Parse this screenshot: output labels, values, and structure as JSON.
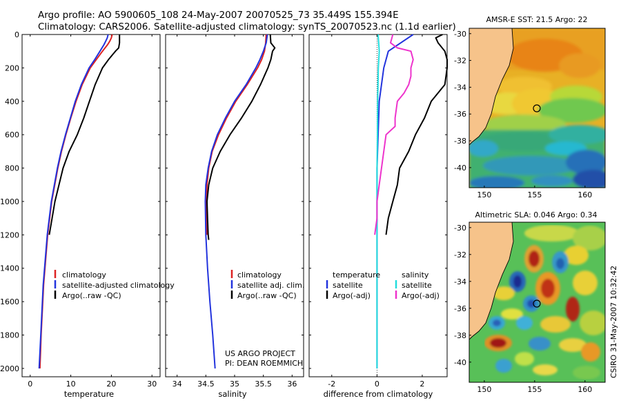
{
  "header": {
    "line1": "Argo profile: AO 5900605_108 24-May-2007 20070525_73 35.449S 155.394E",
    "line2": "Climatology: CARS2006. Satellite-adjusted climatology: synTS_20070523.nc (1.1d earlier)"
  },
  "credit": "CSIRO 31-May-2007 10:32:42",
  "colors": {
    "climatology": "#dd2222",
    "satellite_adjusted": "#2233dd",
    "argo": "#000000",
    "salinity_satellite": "#22dddd",
    "salinity_argo": "#ee33cc",
    "land": "#f6c38a"
  },
  "chart_data": [
    {
      "type": "line",
      "title": "",
      "xlabel": "temperature",
      "ylabel": "",
      "xlim": [
        -2,
        32
      ],
      "ylim": [
        0,
        2050
      ],
      "xticks": [
        "0",
        "10",
        "20",
        "30"
      ],
      "yticks": [
        "0",
        "200",
        "400",
        "600",
        "800",
        "1000",
        "1200",
        "1400",
        "1600",
        "1800",
        "2000"
      ],
      "legend": [
        "climatology",
        "satellite-adjusted climatology",
        "Argo(..raw -QC)"
      ],
      "series": [
        {
          "name": "climatology",
          "depth": [
            0,
            20,
            40,
            60,
            100,
            150,
            200,
            300,
            400,
            500,
            600,
            700,
            800,
            1000,
            1200,
            1500,
            1800,
            2000
          ],
          "values": [
            20.2,
            20.0,
            19.6,
            19.1,
            17.8,
            16.3,
            14.8,
            12.8,
            11.3,
            10.0,
            8.8,
            7.7,
            6.8,
            5.3,
            4.3,
            3.3,
            2.7,
            2.4
          ]
        },
        {
          "name": "satellite-adjusted climatology",
          "depth": [
            0,
            20,
            40,
            60,
            100,
            150,
            200,
            300,
            400,
            500,
            600,
            700,
            800,
            1000,
            1200,
            1500,
            1800,
            2000
          ],
          "values": [
            19.2,
            19.0,
            18.6,
            18.2,
            17.2,
            15.9,
            14.5,
            12.6,
            11.1,
            9.9,
            8.7,
            7.6,
            6.7,
            5.2,
            4.2,
            3.2,
            2.6,
            2.2
          ]
        },
        {
          "name": "Argo(..raw -QC)",
          "depth": [
            0,
            20,
            50,
            80,
            100,
            150,
            200,
            300,
            400,
            500,
            600,
            700,
            800,
            1000,
            1200
          ],
          "values": [
            22.0,
            22.0,
            22.0,
            21.8,
            21.0,
            19.3,
            17.8,
            16.0,
            14.6,
            13.2,
            11.6,
            9.6,
            8.1,
            6.1,
            4.7
          ]
        }
      ]
    },
    {
      "type": "line",
      "title": "",
      "xlabel": "salinity",
      "ylabel": "",
      "xlim": [
        33.8,
        36.2
      ],
      "ylim": [
        0,
        2050
      ],
      "xticks": [
        "34",
        "34.5",
        "35",
        "35.5",
        "36"
      ],
      "legend": [
        "climatology",
        "satellite adj. clim.",
        "Argo(..raw -QC)"
      ],
      "annotation": [
        "US ARGO PROJECT",
        "PI: DEAN ROEMMICH"
      ],
      "series": [
        {
          "name": "climatology",
          "depth": [
            0,
            50,
            100,
            150,
            200,
            300,
            400,
            500,
            600,
            700,
            800,
            900,
            1000,
            1100,
            1200
          ],
          "values": [
            35.55,
            35.54,
            35.52,
            35.47,
            35.4,
            35.22,
            35.02,
            34.86,
            34.72,
            34.61,
            34.55,
            34.52,
            34.51,
            34.51,
            34.52
          ]
        },
        {
          "name": "satellite adj. clim.",
          "depth": [
            0,
            50,
            100,
            150,
            200,
            300,
            400,
            500,
            600,
            700,
            800,
            900,
            1000,
            1200,
            1400,
            1600,
            1800,
            2000
          ],
          "values": [
            35.57,
            35.55,
            35.5,
            35.44,
            35.37,
            35.2,
            35.0,
            34.84,
            34.7,
            34.6,
            34.54,
            34.5,
            34.49,
            34.5,
            34.53,
            34.57,
            34.62,
            34.66
          ]
        },
        {
          "name": "Argo(..raw -QC)",
          "depth": [
            0,
            50,
            80,
            100,
            150,
            200,
            300,
            400,
            500,
            600,
            700,
            800,
            900,
            1000,
            1100,
            1200,
            1230
          ],
          "values": [
            35.62,
            35.63,
            35.7,
            35.66,
            35.63,
            35.58,
            35.45,
            35.3,
            35.12,
            34.92,
            34.75,
            34.62,
            34.55,
            34.52,
            34.53,
            34.54,
            34.55
          ]
        }
      ]
    },
    {
      "type": "line",
      "title": "",
      "xlabel": "difference from climatology",
      "ylabel": "",
      "xlim": [
        -3,
        3.1
      ],
      "ylim": [
        0,
        2050
      ],
      "xticks": [
        "-2",
        "0",
        "2"
      ],
      "legend": [
        "temperature",
        "satellite",
        "Argo(-adj)",
        "salinity",
        "satellite",
        "Argo(-adj)"
      ],
      "series": [
        {
          "name": "temperature satellite",
          "depth": [
            0,
            100,
            200,
            400,
            600,
            800,
            1000,
            1200,
            1500,
            1800,
            2000
          ],
          "values": [
            1.6,
            0.5,
            0.3,
            0.1,
            0.05,
            0.0,
            0.0,
            0.0,
            0.0,
            0.0,
            0.0
          ]
        },
        {
          "name": "temperature Argo(-adj)",
          "depth": [
            0,
            20,
            50,
            100,
            150,
            200,
            300,
            400,
            500,
            600,
            700,
            800,
            900,
            1000,
            1100,
            1200
          ],
          "values": [
            2.9,
            2.6,
            2.7,
            3.0,
            3.1,
            3.1,
            3.0,
            2.4,
            2.1,
            1.7,
            1.4,
            1.0,
            0.9,
            0.7,
            0.5,
            0.4
          ]
        },
        {
          "name": "salinity satellite",
          "depth": [
            0,
            100,
            200,
            400,
            600,
            800,
            1000,
            1500,
            2000
          ],
          "values": [
            0.05,
            0.1,
            0.06,
            0.03,
            0.02,
            0.0,
            0.0,
            0.0,
            0.0
          ]
        },
        {
          "name": "salinity Argo(-adj)",
          "depth": [
            0,
            50,
            80,
            100,
            150,
            200,
            250,
            300,
            350,
            400,
            500,
            550,
            600,
            700,
            800,
            900,
            1000,
            1100,
            1200
          ],
          "values": [
            0.7,
            0.6,
            0.9,
            1.5,
            1.6,
            1.5,
            1.5,
            1.4,
            1.2,
            0.9,
            0.8,
            0.8,
            0.4,
            0.3,
            0.2,
            0.1,
            0.0,
            0.0,
            -0.1
          ]
        }
      ]
    },
    {
      "type": "heatmap",
      "title": "AMSR-E SST: 21.5 Argo: 22",
      "xticks": [
        "150",
        "155",
        "160"
      ],
      "yticks": [
        "-30",
        "-32",
        "-34",
        "-36",
        "-38",
        "-40"
      ],
      "xlim": [
        148.5,
        162
      ],
      "ylim": [
        -41.5,
        -29.6
      ],
      "marker": {
        "lon": 155.394,
        "lat": -35.449
      }
    },
    {
      "type": "heatmap",
      "title": "Altimetric SLA: 0.046 Argo: 0.34",
      "xticks": [
        "150",
        "155",
        "160"
      ],
      "yticks": [
        "-30",
        "-32",
        "-34",
        "-36",
        "-38",
        "-40"
      ],
      "xlim": [
        148.5,
        162
      ],
      "ylim": [
        -41.5,
        -29.6
      ],
      "marker": {
        "lon": 155.394,
        "lat": -35.449
      }
    }
  ]
}
